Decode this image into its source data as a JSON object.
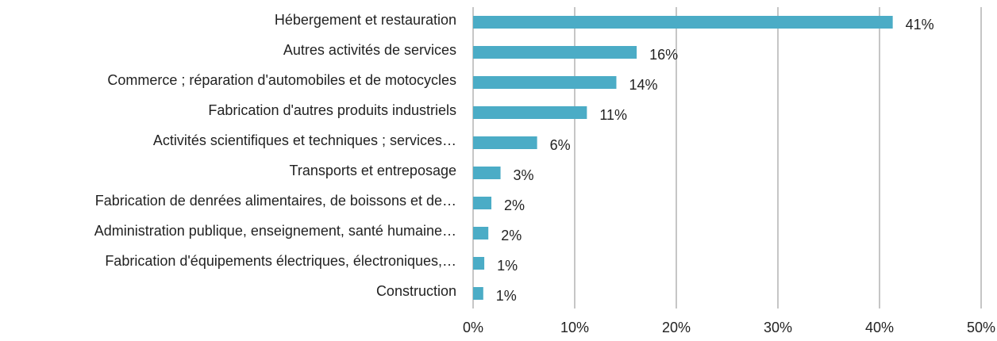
{
  "chart_data": {
    "type": "bar",
    "orientation": "horizontal",
    "categories": [
      "Hébergement et restauration",
      "Autres activités de services",
      "Commerce ; réparation d'automobiles et de motocycles",
      "Fabrication d'autres produits industriels",
      "Activités scientifiques et techniques ; services…",
      "Transports et entreposage",
      "Fabrication de denrées alimentaires, de boissons et  de…",
      "Administration publique, enseignement, santé humaine…",
      "Fabrication d'équipements électriques, électroniques,…",
      "Construction"
    ],
    "values": [
      41.3,
      16.1,
      14.1,
      11.2,
      6.3,
      2.7,
      1.8,
      1.5,
      1.1,
      1.0
    ],
    "value_labels": [
      "41%",
      "16%",
      "14%",
      "11%",
      "6%",
      "3%",
      "2%",
      "2%",
      "1%",
      "1%"
    ],
    "color": "#4bacc6",
    "xlim": [
      0,
      50
    ],
    "xticks": [
      {
        "value": 0,
        "label": "0%"
      },
      {
        "value": 10,
        "label": "10%"
      },
      {
        "value": 20,
        "label": "20%"
      },
      {
        "value": 30,
        "label": "30%"
      },
      {
        "value": 40,
        "label": "40%"
      },
      {
        "value": 50,
        "label": "50%"
      }
    ],
    "grid": true
  }
}
